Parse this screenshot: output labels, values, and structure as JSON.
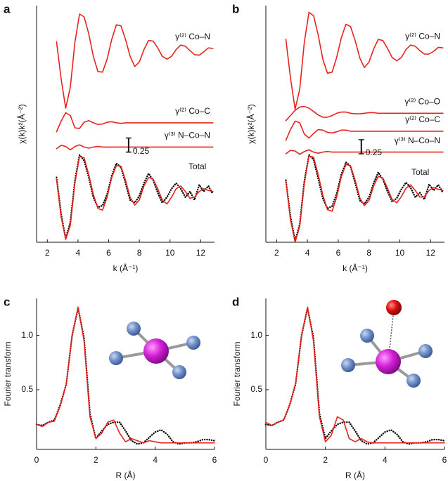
{
  "chart_data": [
    {
      "type": "line",
      "panel": "a",
      "ylabel": "χ(k)k²(Å⁻²)",
      "xlabel": "k (Å⁻¹)",
      "xlim": [
        1.3,
        12.9
      ],
      "xticks": [
        2,
        4,
        6,
        8,
        10,
        12
      ],
      "ylim": [
        -1.0,
        3.2
      ],
      "x": [
        2.6,
        2.9,
        3.2,
        3.5,
        3.8,
        4.1,
        4.4,
        4.7,
        5.0,
        5.3,
        5.6,
        5.9,
        6.2,
        6.5,
        6.8,
        7.1,
        7.4,
        7.7,
        8.0,
        8.3,
        8.6,
        8.9,
        9.2,
        9.5,
        9.8,
        10.1,
        10.4,
        10.7,
        11.0,
        11.3,
        11.6,
        11.9,
        12.2,
        12.5,
        12.8
      ],
      "scale_bar": 0.25,
      "annotation": "Total",
      "series": [
        {
          "name": "γ⁽²⁾ Co–N",
          "color": "#e8231f",
          "values": [
            2.56,
            1.9,
            1.38,
            1.75,
            2.55,
            3.05,
            3.0,
            2.7,
            2.3,
            2.03,
            2.02,
            2.25,
            2.6,
            2.86,
            2.84,
            2.6,
            2.3,
            2.12,
            2.2,
            2.42,
            2.58,
            2.57,
            2.45,
            2.3,
            2.25,
            2.3,
            2.42,
            2.5,
            2.48,
            2.4,
            2.33,
            2.32,
            2.38,
            2.45,
            2.44
          ]
        },
        {
          "name": "γ⁽²⁾ Co–C",
          "color": "#e8231f",
          "values": [
            0.96,
            1.15,
            1.3,
            1.25,
            1.03,
            1.02,
            1.13,
            1.16,
            1.12,
            1.09,
            1.1,
            1.13,
            1.14,
            1.12,
            1.11,
            1.12,
            1.12,
            1.12,
            1.12,
            1.12,
            1.12,
            1.12,
            1.12,
            1.12,
            1.12,
            1.12,
            1.12,
            1.12,
            1.12,
            1.12,
            1.12,
            1.12,
            1.12,
            1.12,
            1.12
          ]
        },
        {
          "name": "γ⁽³⁾ N–Co–N",
          "color": "#e8231f",
          "values": [
            0.66,
            0.72,
            0.7,
            0.64,
            0.7,
            0.73,
            0.69,
            0.67,
            0.69,
            0.7,
            0.69,
            0.69,
            0.69,
            0.69,
            0.69,
            0.69,
            0.69,
            0.69,
            0.69,
            0.69,
            0.69,
            0.69,
            0.69,
            0.69,
            0.69,
            0.69,
            0.69,
            0.69,
            0.69,
            0.69,
            0.69,
            0.69,
            0.69,
            0.69,
            0.69
          ]
        },
        {
          "color": "#000000",
          "style": "dotted",
          "values": [
            0.15,
            -0.5,
            -0.93,
            -0.65,
            0.1,
            0.55,
            0.45,
            0.15,
            -0.2,
            -0.38,
            -0.35,
            -0.15,
            0.18,
            0.4,
            0.33,
            0.05,
            -0.25,
            -0.3,
            -0.18,
            0.05,
            0.22,
            0.1,
            -0.12,
            -0.3,
            -0.2,
            -0.05,
            0.05,
            -0.05,
            -0.2,
            -0.1,
            -0.25,
            0.02,
            -0.1,
            0.0,
            -0.15
          ]
        },
        {
          "color": "#e8231f",
          "values": [
            0.12,
            -0.55,
            -0.95,
            -0.7,
            0.05,
            0.52,
            0.5,
            0.2,
            -0.15,
            -0.4,
            -0.43,
            -0.2,
            0.15,
            0.36,
            0.35,
            0.1,
            -0.2,
            -0.34,
            -0.25,
            0.0,
            0.15,
            0.12,
            -0.05,
            -0.25,
            -0.32,
            -0.2,
            -0.05,
            0.0,
            -0.1,
            -0.22,
            -0.2,
            -0.1,
            -0.05,
            -0.08,
            -0.1
          ]
        }
      ]
    },
    {
      "type": "line",
      "panel": "b",
      "ylabel": "χ(k)k²(Å⁻²)",
      "xlabel": "k (Å⁻¹)",
      "xlim": [
        1.3,
        12.9
      ],
      "xticks": [
        2,
        4,
        6,
        8,
        10,
        12
      ],
      "ylim": [
        -1.0,
        3.2
      ],
      "x": [
        2.6,
        2.9,
        3.2,
        3.5,
        3.8,
        4.1,
        4.4,
        4.7,
        5.0,
        5.3,
        5.6,
        5.9,
        6.2,
        6.5,
        6.8,
        7.1,
        7.4,
        7.7,
        8.0,
        8.3,
        8.6,
        8.9,
        9.2,
        9.5,
        9.8,
        10.1,
        10.4,
        10.7,
        11.0,
        11.3,
        11.6,
        11.9,
        12.2,
        12.5,
        12.8
      ],
      "scale_bar": 0.25,
      "annotation": "Total",
      "series": [
        {
          "name": "γ⁽²⁾ Co–N",
          "color": "#e8231f",
          "values": [
            2.6,
            1.92,
            1.36,
            1.72,
            2.55,
            3.08,
            3.02,
            2.68,
            2.25,
            2.0,
            2.02,
            2.28,
            2.63,
            2.87,
            2.83,
            2.58,
            2.27,
            2.1,
            2.2,
            2.43,
            2.6,
            2.58,
            2.44,
            2.28,
            2.22,
            2.28,
            2.42,
            2.5,
            2.48,
            2.4,
            2.34,
            2.34,
            2.39,
            2.46,
            2.45
          ]
        },
        {
          "name": "γ⁽²⁾ Co–O",
          "color": "#e8231f",
          "values": [
            1.16,
            1.25,
            1.34,
            1.4,
            1.41,
            1.38,
            1.32,
            1.26,
            1.22,
            1.22,
            1.25,
            1.29,
            1.31,
            1.31,
            1.29,
            1.28,
            1.28,
            1.29,
            1.3,
            1.3,
            1.29,
            1.29,
            1.29,
            1.29,
            1.29,
            1.29,
            1.29,
            1.29,
            1.29,
            1.29,
            1.29,
            1.29,
            1.29,
            1.29,
            1.29
          ]
        },
        {
          "name": "γ⁽²⁾ Co–C",
          "color": "#e8231f",
          "values": [
            0.81,
            1.0,
            1.15,
            1.12,
            0.92,
            0.85,
            0.93,
            1.0,
            0.99,
            0.95,
            0.94,
            0.96,
            0.99,
            0.99,
            0.97,
            0.97,
            0.97,
            0.97,
            0.97,
            0.97,
            0.97,
            0.97,
            0.97,
            0.97,
            0.97,
            0.97,
            0.97,
            0.97,
            0.97,
            0.97,
            0.97,
            0.97,
            0.97,
            0.97,
            0.97
          ]
        },
        {
          "name": "γ⁽³⁾ N–Co–N",
          "color": "#e8231f",
          "values": [
            0.57,
            0.63,
            0.62,
            0.56,
            0.61,
            0.64,
            0.6,
            0.58,
            0.6,
            0.61,
            0.6,
            0.6,
            0.6,
            0.6,
            0.6,
            0.6,
            0.6,
            0.6,
            0.6,
            0.6,
            0.6,
            0.6,
            0.6,
            0.6,
            0.6,
            0.6,
            0.6,
            0.6,
            0.6,
            0.6,
            0.6,
            0.6,
            0.6,
            0.6,
            0.6
          ]
        },
        {
          "color": "#000000",
          "style": "dotted",
          "values": [
            0.1,
            -0.55,
            -0.97,
            -0.68,
            0.08,
            0.55,
            0.47,
            0.13,
            -0.22,
            -0.4,
            -0.36,
            -0.14,
            0.2,
            0.42,
            0.35,
            0.05,
            -0.26,
            -0.32,
            -0.2,
            0.05,
            0.24,
            0.12,
            -0.1,
            -0.28,
            -0.22,
            -0.06,
            0.06,
            -0.03,
            -0.2,
            -0.12,
            -0.24,
            0.03,
            -0.08,
            0.02,
            -0.12
          ]
        },
        {
          "color": "#e8231f",
          "values": [
            0.08,
            -0.6,
            -1.0,
            -0.72,
            0.04,
            0.53,
            0.51,
            0.2,
            -0.16,
            -0.42,
            -0.45,
            -0.2,
            0.16,
            0.38,
            0.36,
            0.1,
            -0.21,
            -0.35,
            -0.26,
            0.0,
            0.17,
            0.14,
            -0.04,
            -0.24,
            -0.3,
            -0.19,
            -0.04,
            0.02,
            -0.08,
            -0.2,
            -0.19,
            -0.08,
            -0.03,
            -0.06,
            -0.08
          ]
        }
      ]
    },
    {
      "type": "line",
      "panel": "c",
      "ylabel": "Fourier transform",
      "xlabel": "R (Å)",
      "xlim": [
        0,
        6
      ],
      "xticks": [
        0,
        2,
        4,
        6
      ],
      "ylim": [
        -0.05,
        1.34
      ],
      "yticks": [
        0.5,
        {
          "value": 1,
          "label": "1.0"
        }
      ],
      "x": [
        0,
        0.2,
        0.4,
        0.6,
        0.8,
        1.0,
        1.2,
        1.4,
        1.6,
        1.8,
        2.0,
        2.2,
        2.4,
        2.6,
        2.8,
        3.0,
        3.2,
        3.4,
        3.6,
        3.8,
        4.0,
        4.2,
        4.4,
        4.6,
        4.8,
        5.0,
        5.2,
        5.4,
        5.6,
        5.8,
        6.0
      ],
      "series": [
        {
          "color": "#000000",
          "style": "dotted",
          "values": [
            0.18,
            0.17,
            0.2,
            0.22,
            0.36,
            0.55,
            1.0,
            1.25,
            0.98,
            0.28,
            0.05,
            0.12,
            0.18,
            0.2,
            0.2,
            0.12,
            0.03,
            0.0,
            0.01,
            0.06,
            0.11,
            0.13,
            0.09,
            0.02,
            0.0,
            0.01,
            0.01,
            0.02,
            0.04,
            0.04,
            0.03
          ]
        },
        {
          "color": "#e8231f",
          "values": [
            0.18,
            0.16,
            0.2,
            0.21,
            0.35,
            0.55,
            1.0,
            1.26,
            0.95,
            0.25,
            0.05,
            0.1,
            0.2,
            0.22,
            0.1,
            0.02,
            0.05,
            0.03,
            0.01,
            0.03,
            0.02,
            0.01,
            0.01,
            0.01,
            0.01,
            0.01,
            0.01,
            0.01,
            0.01,
            0.01,
            0.01
          ]
        }
      ]
    },
    {
      "type": "line",
      "panel": "d",
      "ylabel": "Fourier transform",
      "xlabel": "R (Å)",
      "xlim": [
        0,
        6
      ],
      "xticks": [
        0,
        2,
        4,
        6
      ],
      "ylim": [
        -0.05,
        1.34
      ],
      "yticks": [
        0.5,
        {
          "value": 1,
          "label": "1.0"
        }
      ],
      "x": [
        0,
        0.2,
        0.4,
        0.6,
        0.8,
        1.0,
        1.2,
        1.4,
        1.6,
        1.8,
        2.0,
        2.2,
        2.4,
        2.6,
        2.8,
        3.0,
        3.2,
        3.4,
        3.6,
        3.8,
        4.0,
        4.2,
        4.4,
        4.6,
        4.8,
        5.0,
        5.2,
        5.4,
        5.6,
        5.8,
        6.0
      ],
      "series": [
        {
          "color": "#000000",
          "style": "dotted",
          "values": [
            0.18,
            0.17,
            0.2,
            0.22,
            0.36,
            0.55,
            1.0,
            1.25,
            0.98,
            0.28,
            0.05,
            0.12,
            0.18,
            0.2,
            0.2,
            0.12,
            0.03,
            0.0,
            0.01,
            0.06,
            0.11,
            0.13,
            0.09,
            0.02,
            0.0,
            0.01,
            0.01,
            0.02,
            0.04,
            0.04,
            0.03
          ]
        },
        {
          "color": "#e8231f",
          "values": [
            0.2,
            0.17,
            0.2,
            0.22,
            0.36,
            0.56,
            1.0,
            1.26,
            0.95,
            0.25,
            0.02,
            0.08,
            0.25,
            0.22,
            0.05,
            0.02,
            0.05,
            0.02,
            0.01,
            0.01,
            0.01,
            0.01,
            0.01,
            0.01,
            0.01,
            0.01,
            0.01,
            0.01,
            0.01,
            0.01,
            0.01
          ]
        }
      ]
    }
  ]
}
